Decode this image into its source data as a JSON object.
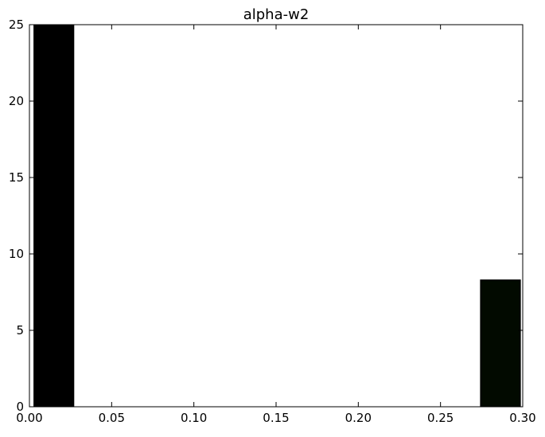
{
  "chart_data": {
    "type": "bar",
    "title": "alpha-w2",
    "xlabel": "",
    "ylabel": "",
    "xlim": [
      0.0,
      0.3
    ],
    "ylim": [
      0,
      25
    ],
    "xticks": [
      0.0,
      0.05,
      0.1,
      0.15,
      0.2,
      0.25,
      0.3
    ],
    "xtick_labels": [
      "0.00",
      "0.05",
      "0.10",
      "0.15",
      "0.20",
      "0.25",
      "0.30"
    ],
    "yticks": [
      0,
      5,
      10,
      15,
      20,
      25
    ],
    "ytick_labels": [
      "0",
      "5",
      "10",
      "15",
      "20",
      "25"
    ],
    "grid": false,
    "bin_width": 0.0243,
    "bins": [
      {
        "x0": 0.0027,
        "x1": 0.027,
        "value": 25,
        "color": "#000000"
      },
      {
        "x0": 0.027,
        "x1": 0.0513,
        "value": 0,
        "color": "#000000"
      },
      {
        "x0": 0.0513,
        "x1": 0.0756,
        "value": 0,
        "color": "#000000"
      },
      {
        "x0": 0.0756,
        "x1": 0.0999,
        "value": 0,
        "color": "#000000"
      },
      {
        "x0": 0.0999,
        "x1": 0.1242,
        "value": 0,
        "color": "#000000"
      },
      {
        "x0": 0.1242,
        "x1": 0.1485,
        "value": 0,
        "color": "#000000"
      },
      {
        "x0": 0.1485,
        "x1": 0.1728,
        "value": 0,
        "color": "#000000"
      },
      {
        "x0": 0.1728,
        "x1": 0.1971,
        "value": 0,
        "color": "#000000"
      },
      {
        "x0": 0.1971,
        "x1": 0.2214,
        "value": 0,
        "color": "#000000"
      },
      {
        "x0": 0.2214,
        "x1": 0.2457,
        "value": 0,
        "color": "#000000"
      },
      {
        "x0": 0.2457,
        "x1": 0.27,
        "value": 0,
        "color": "#000000"
      },
      {
        "x0": 0.2743,
        "x1": 0.2986,
        "value": 8.3,
        "color": "#020a00"
      }
    ]
  }
}
